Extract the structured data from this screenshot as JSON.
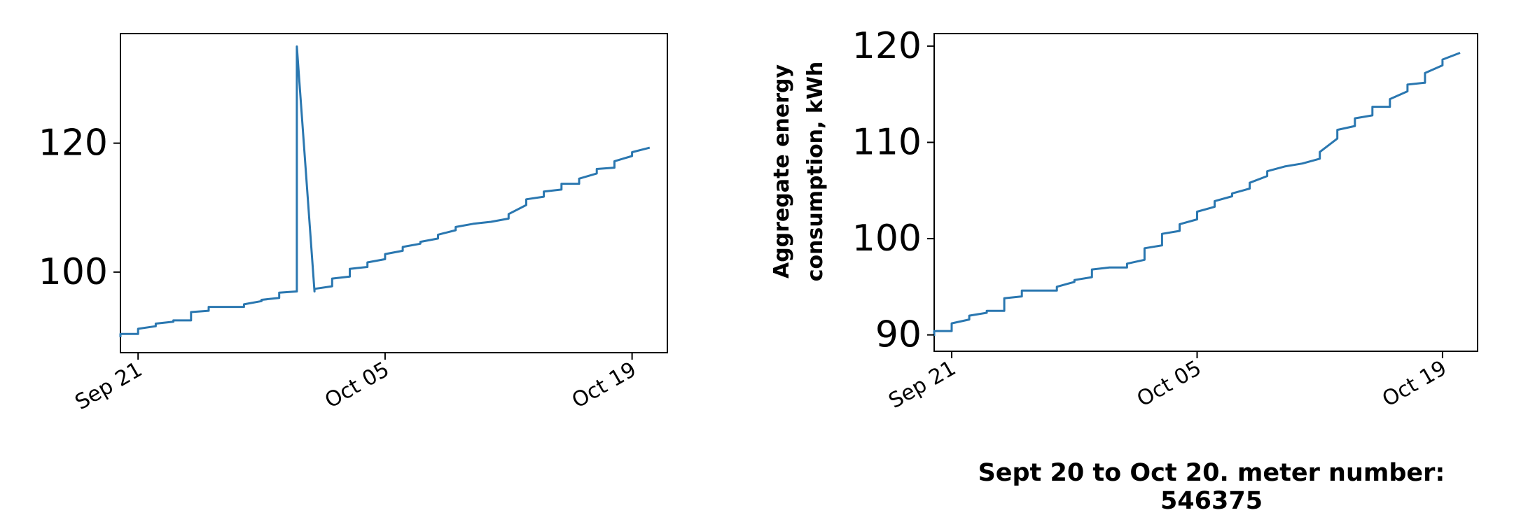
{
  "line_color": "#2a77b0",
  "caption": "Sept 20 to Oct 20. meter number: 546375",
  "chart_data": [
    {
      "type": "line",
      "xlabel": "",
      "ylabel": "",
      "xlim": [
        "2021-09-20",
        "2021-10-21"
      ],
      "ylim": [
        87.5,
        137.0
      ],
      "x_ticks": [
        "Sep 21",
        "Oct 05",
        "Oct 19"
      ],
      "y_ticks": [
        100,
        120
      ],
      "grid": false,
      "series": [
        {
          "x": [
            "2021-09-20",
            "2021-09-20",
            "2021-09-21",
            "2021-09-21",
            "2021-09-22",
            "2021-09-22",
            "2021-09-23",
            "2021-09-23",
            "2021-09-24",
            "2021-09-24",
            "2021-09-25",
            "2021-09-25",
            "2021-09-26",
            "2021-09-26",
            "2021-09-27",
            "2021-09-27",
            "2021-09-28",
            "2021-09-28",
            "2021-09-29",
            "2021-09-29",
            "2021-09-30",
            "2021-09-30",
            "2021-10-01",
            "2021-10-01",
            "2021-10-02",
            "2021-10-02",
            "2021-10-03",
            "2021-10-03",
            "2021-10-04",
            "2021-10-04",
            "2021-10-05",
            "2021-10-05",
            "2021-10-06",
            "2021-10-06",
            "2021-10-07",
            "2021-10-07",
            "2021-10-08",
            "2021-10-08",
            "2021-10-09",
            "2021-10-09",
            "2021-10-10",
            "2021-10-11",
            "2021-10-12",
            "2021-10-12",
            "2021-10-13",
            "2021-10-13",
            "2021-10-14",
            "2021-10-14",
            "2021-10-15",
            "2021-10-15",
            "2021-10-16",
            "2021-10-16",
            "2021-10-17",
            "2021-10-17",
            "2021-10-18",
            "2021-10-18",
            "2021-10-19",
            "2021-10-19",
            "2021-10-20"
          ],
          "y": [
            89.9,
            90.4,
            90.4,
            91.2,
            91.6,
            92.0,
            92.3,
            92.5,
            92.5,
            93.8,
            94.0,
            94.6,
            94.6,
            94.6,
            94.6,
            95.0,
            95.5,
            95.7,
            96.0,
            96.8,
            97.0,
            135.0,
            97.0,
            97.4,
            97.8,
            99.0,
            99.3,
            100.5,
            100.8,
            101.5,
            102.0,
            102.8,
            103.3,
            103.9,
            104.4,
            104.7,
            105.2,
            105.8,
            106.5,
            107.0,
            107.5,
            107.8,
            108.3,
            109.0,
            110.4,
            111.3,
            111.7,
            112.5,
            112.8,
            113.7,
            113.7,
            114.5,
            115.3,
            116.0,
            116.2,
            117.2,
            118.0,
            118.6,
            119.3
          ]
        }
      ]
    },
    {
      "type": "line",
      "xlabel": "",
      "ylabel": "Aggregate energy consumption, kWh",
      "ylabel_lines": [
        "Aggregate energy",
        "consumption, kWh"
      ],
      "xlim": [
        "2021-09-20",
        "2021-10-21"
      ],
      "ylim": [
        88.3,
        121.3
      ],
      "x_ticks": [
        "Sep 21",
        "Oct 05",
        "Oct 19"
      ],
      "y_ticks": [
        90,
        100,
        110,
        120
      ],
      "grid": false,
      "series": [
        {
          "x": [
            "2021-09-20",
            "2021-09-20",
            "2021-09-21",
            "2021-09-21",
            "2021-09-22",
            "2021-09-22",
            "2021-09-23",
            "2021-09-23",
            "2021-09-24",
            "2021-09-24",
            "2021-09-25",
            "2021-09-25",
            "2021-09-26",
            "2021-09-26",
            "2021-09-27",
            "2021-09-27",
            "2021-09-28",
            "2021-09-28",
            "2021-09-29",
            "2021-09-29",
            "2021-09-30",
            "2021-10-01",
            "2021-10-01",
            "2021-10-02",
            "2021-10-02",
            "2021-10-03",
            "2021-10-03",
            "2021-10-04",
            "2021-10-04",
            "2021-10-05",
            "2021-10-05",
            "2021-10-06",
            "2021-10-06",
            "2021-10-07",
            "2021-10-07",
            "2021-10-08",
            "2021-10-08",
            "2021-10-09",
            "2021-10-09",
            "2021-10-10",
            "2021-10-11",
            "2021-10-12",
            "2021-10-12",
            "2021-10-13",
            "2021-10-13",
            "2021-10-14",
            "2021-10-14",
            "2021-10-15",
            "2021-10-15",
            "2021-10-16",
            "2021-10-16",
            "2021-10-17",
            "2021-10-17",
            "2021-10-18",
            "2021-10-18",
            "2021-10-19",
            "2021-10-19",
            "2021-10-20"
          ],
          "y": [
            89.9,
            90.4,
            90.4,
            91.2,
            91.6,
            92.0,
            92.3,
            92.5,
            92.5,
            93.8,
            94.0,
            94.6,
            94.6,
            94.6,
            94.6,
            95.0,
            95.5,
            95.7,
            96.0,
            96.8,
            97.0,
            97.0,
            97.4,
            97.8,
            99.0,
            99.3,
            100.5,
            100.8,
            101.5,
            102.0,
            102.8,
            103.3,
            103.9,
            104.4,
            104.7,
            105.2,
            105.8,
            106.5,
            107.0,
            107.5,
            107.8,
            108.3,
            109.0,
            110.4,
            111.3,
            111.7,
            112.5,
            112.8,
            113.7,
            113.7,
            114.5,
            115.3,
            116.0,
            116.2,
            117.2,
            118.0,
            118.6,
            119.3
          ]
        }
      ]
    }
  ]
}
